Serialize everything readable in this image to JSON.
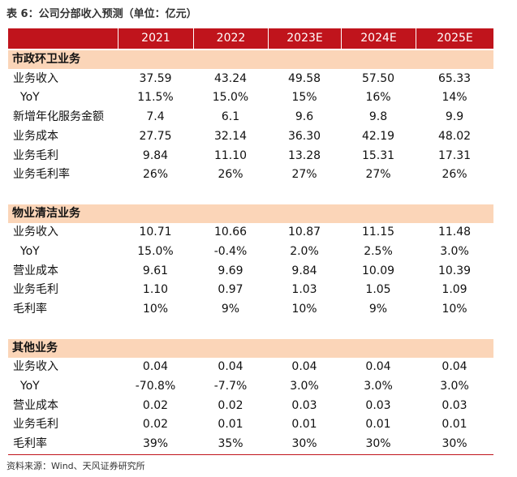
{
  "title": "表 6：公司分部收入预测（单位：亿元）",
  "columns": [
    "2021",
    "2022",
    "2023E",
    "2024E",
    "2025E"
  ],
  "sections": [
    {
      "name": "市政环卫业务",
      "rows": [
        {
          "label": "业务收入",
          "values": [
            "37.59",
            "43.24",
            "49.58",
            "57.50",
            "65.33"
          ]
        },
        {
          "label": "  YoY",
          "values": [
            "11.5%",
            "15.0%",
            "15%",
            "16%",
            "14%"
          ]
        },
        {
          "label": "新增年化服务金额",
          "values": [
            "7.4",
            "6.1",
            "9.6",
            "9.8",
            "9.9"
          ]
        },
        {
          "label": "业务成本",
          "values": [
            "27.75",
            "32.14",
            "36.30",
            "42.19",
            "48.02"
          ]
        },
        {
          "label": "业务毛利",
          "values": [
            "9.84",
            "11.10",
            "13.28",
            "15.31",
            "17.31"
          ]
        },
        {
          "label": "业务毛利率",
          "values": [
            "26%",
            "26%",
            "27%",
            "27%",
            "26%"
          ]
        }
      ]
    },
    {
      "name": "物业清洁业务",
      "rows": [
        {
          "label": "业务收入",
          "values": [
            "10.71",
            "10.66",
            "10.87",
            "11.15",
            "11.48"
          ]
        },
        {
          "label": "  YoY",
          "values": [
            "15.0%",
            "-0.4%",
            "2.0%",
            "2.5%",
            "3.0%"
          ]
        },
        {
          "label": "营业成本",
          "values": [
            "9.61",
            "9.69",
            "9.84",
            "10.09",
            "10.39"
          ]
        },
        {
          "label": "业务毛利",
          "values": [
            "1.10",
            "0.97",
            "1.03",
            "1.05",
            "1.09"
          ]
        },
        {
          "label": "毛利率",
          "values": [
            "10%",
            "9%",
            "10%",
            "9%",
            "10%"
          ]
        }
      ]
    },
    {
      "name": "其他业务",
      "rows": [
        {
          "label": "业务收入",
          "values": [
            "0.04",
            "0.04",
            "0.04",
            "0.04",
            "0.04"
          ]
        },
        {
          "label": "  YoY",
          "values": [
            "-70.8%",
            "-7.7%",
            "3.0%",
            "3.0%",
            "3.0%"
          ]
        },
        {
          "label": "营业成本",
          "values": [
            "0.02",
            "0.02",
            "0.03",
            "0.03",
            "0.03"
          ]
        },
        {
          "label": "业务毛利",
          "values": [
            "0.02",
            "0.01",
            "0.01",
            "0.01",
            "0.01"
          ]
        },
        {
          "label": "毛利率",
          "values": [
            "39%",
            "35%",
            "30%",
            "30%",
            "30%"
          ]
        }
      ]
    }
  ],
  "source": "资料来源：Wind、天风证券研究所"
}
